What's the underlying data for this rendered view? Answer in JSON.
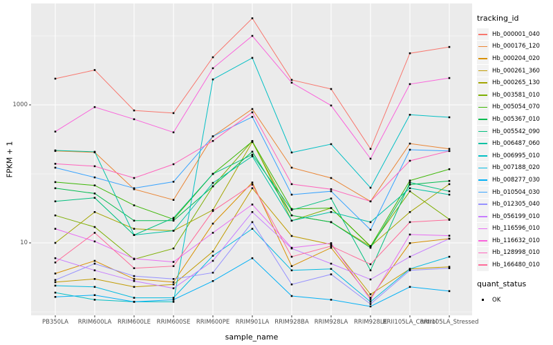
{
  "figure": {
    "background": "#ffffff",
    "panel_background": "#ebebeb",
    "gridline_color": "#ffffff",
    "axis_text_color": "#4d4d4d",
    "tick_mark_color": "#333333",
    "point_color": "#000000"
  },
  "chart_data": {
    "type": "line",
    "title": "",
    "xlabel": "sample_name",
    "ylabel": "FPKM + 1",
    "y_scale": "log10",
    "ylim": [
      1,
      20000
    ],
    "y_major_ticks": [
      10,
      1000
    ],
    "y_minor_gridlines": [
      1,
      100,
      10000
    ],
    "y_tick_labels": [
      "10",
      "1000"
    ],
    "grid": true,
    "legend_position": "right",
    "categories": [
      "PB350LA",
      "RRIM600LA",
      "RRIM600LE",
      "RRIM600SE",
      "RRIM600PE",
      "RRIM901LA",
      "RRIM928BA",
      "RRIM928LA",
      "RRIM928LE",
      "RRII105LA_Control",
      "RRII105LA_Stressed"
    ],
    "series": [
      {
        "name": "Hb_000001_040",
        "color": "#F8766D",
        "values": [
          2400,
          3200,
          830,
          760,
          4900,
          18000,
          2300,
          1700,
          230,
          5600,
          6900
        ]
      },
      {
        "name": "Hb_000176_120",
        "color": "#EA8331",
        "values": [
          215,
          205,
          60,
          42,
          350,
          870,
          123,
          87,
          40,
          275,
          230
        ]
      },
      {
        "name": "Hb_000204_020",
        "color": "#D89000",
        "values": [
          3.6,
          5.5,
          3.0,
          2.7,
          19,
          75,
          4.6,
          8.5,
          1.6,
          9.9,
          11.5
        ]
      },
      {
        "name": "Hb_000261_360",
        "color": "#C09B00",
        "values": [
          2.7,
          3.0,
          2.3,
          2.5,
          7.5,
          62,
          12.6,
          9.5,
          1.8,
          4.2,
          4.5
        ]
      },
      {
        "name": "Hb_000265_130",
        "color": "#A3A500",
        "values": [
          10,
          28,
          16,
          15,
          30,
          290,
          25,
          20,
          8.9,
          28,
          71
        ]
      },
      {
        "name": "Hb_003581_010",
        "color": "#7CAE00",
        "values": [
          25,
          17,
          5.8,
          8.3,
          66,
          300,
          21,
          32,
          9.0,
          56,
          22
        ]
      },
      {
        "name": "Hb_005054_070",
        "color": "#39B600",
        "values": [
          76,
          68,
          35,
          22,
          100,
          295,
          31,
          32,
          8.9,
          80,
          117
        ]
      },
      {
        "name": "Hb_005367_010",
        "color": "#00BB4E",
        "values": [
          62,
          52,
          21,
          21,
          66,
          210,
          25,
          20,
          8.5,
          70,
          79
        ]
      },
      {
        "name": "Hb_005542_090",
        "color": "#00BF7D",
        "values": [
          40,
          45,
          13,
          23,
          100,
          190,
          30,
          44,
          4.0,
          75,
          56
        ]
      },
      {
        "name": "Hb_006487_060",
        "color": "#00C1A3",
        "values": [
          219,
          209,
          13,
          15,
          74,
          180,
          21,
          28,
          20,
          62,
          50
        ]
      },
      {
        "name": "Hb_006995_010",
        "color": "#00BFC4",
        "values": [
          1.9,
          1.5,
          1.4,
          1.4,
          2340,
          4800,
          204,
          270,
          63,
          720,
          660
        ]
      },
      {
        "name": "Hb_007188_020",
        "color": "#00BAE0",
        "values": [
          2.4,
          2.3,
          1.6,
          1.6,
          6.5,
          16,
          4.0,
          4.2,
          1.4,
          4.2,
          6.3
        ]
      },
      {
        "name": "Hb_008277_030",
        "color": "#00B0F6",
        "values": [
          1.65,
          1.75,
          1.4,
          1.5,
          2.8,
          6.0,
          1.7,
          1.5,
          1.2,
          2.3,
          2.0
        ]
      },
      {
        "name": "Hb_010504_030",
        "color": "#35A2FF",
        "values": [
          123,
          89,
          62,
          77,
          350,
          670,
          50,
          56,
          15.5,
          224,
          215
        ]
      },
      {
        "name": "Hb_012305_040",
        "color": "#9590FF",
        "values": [
          2.9,
          5.0,
          3.3,
          3.0,
          3.7,
          20,
          2.5,
          3.5,
          1.3,
          4.0,
          4.3
        ]
      },
      {
        "name": "Hb_056199_010",
        "color": "#C77CFF",
        "values": [
          6.0,
          4.0,
          2.8,
          2.2,
          5.5,
          28,
          8.3,
          5.0,
          2.95,
          6.3,
          11.5
        ]
      },
      {
        "name": "Hb_116596_010",
        "color": "#E76BF3",
        "values": [
          16,
          10.5,
          5.9,
          5.3,
          14,
          36,
          8.5,
          9.9,
          1.5,
          13.2,
          12.7
        ]
      },
      {
        "name": "Hb_116632_010",
        "color": "#FA62DB",
        "values": [
          410,
          930,
          620,
          400,
          3400,
          10000,
          2100,
          980,
          166,
          2000,
          2450
        ]
      },
      {
        "name": "Hb_128998_010",
        "color": "#FF62BC",
        "values": [
          140,
          129,
          87,
          138,
          300,
          780,
          71,
          60,
          40,
          155,
          215
        ]
      },
      {
        "name": "Hb_166480_010",
        "color": "#FF6A98",
        "values": [
          5.2,
          14,
          4.3,
          4.6,
          29,
          70,
          6.3,
          9.0,
          4.9,
          20,
          21.6
        ]
      }
    ],
    "legend": {
      "tracking_title": "tracking_id",
      "quant_title": "quant_status",
      "quant_items": [
        {
          "label": "OK"
        }
      ]
    }
  }
}
